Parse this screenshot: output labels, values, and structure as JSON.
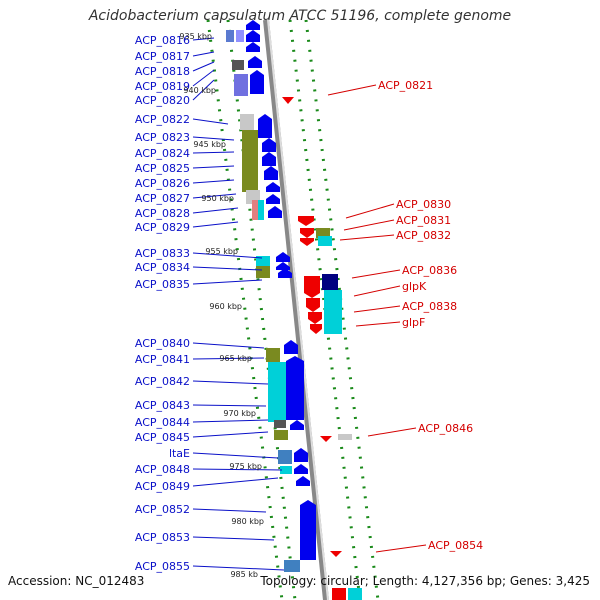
{
  "title": "Acidobacterium capsulatum ATCC 51196, complete genome",
  "footer": {
    "accession": "Accession: NC_012483",
    "stats": "Topology: circular; Length: 4,127,356 bp; Genes: 3,425"
  },
  "colors": {
    "left_label": "#0a10c8",
    "right_label": "#d40000",
    "plus_gene": "#0000ee",
    "minus_gene": "#ee0000",
    "cog_green": "#7a8a20",
    "cog_cyan": "#00d0d8",
    "track_dots": "#1a8a1a",
    "backbone": "#888888"
  },
  "kbp_ticks": [
    "935 kbp",
    "940 kbp",
    "945 kbp",
    "950 kbp",
    "955 kbp",
    "960 kbp",
    "965 kbp",
    "970 kbp",
    "975 kbp",
    "980 kbp",
    "985 kb"
  ],
  "left_genes": [
    "ACP_0816",
    "ACP_0817",
    "ACP_0818",
    "ACP_0819",
    "ACP_0820",
    "ACP_0822",
    "ACP_0823",
    "ACP_0824",
    "ACP_0825",
    "ACP_0826",
    "ACP_0827",
    "ACP_0828",
    "ACP_0829",
    "ACP_0833",
    "ACP_0834",
    "ACP_0835",
    "ACP_0840",
    "ACP_0841",
    "ACP_0842",
    "ACP_0843",
    "ACP_0844",
    "ACP_0845",
    "ltaE",
    "ACP_0848",
    "ACP_0849",
    "ACP_0852",
    "ACP_0853",
    "ACP_0855"
  ],
  "right_genes": [
    "ACP_0821",
    "ACP_0830",
    "ACP_0831",
    "ACP_0832",
    "ACP_0836",
    "glpK",
    "ACP_0838",
    "glpF",
    "ACP_0846",
    "ACP_0854"
  ]
}
